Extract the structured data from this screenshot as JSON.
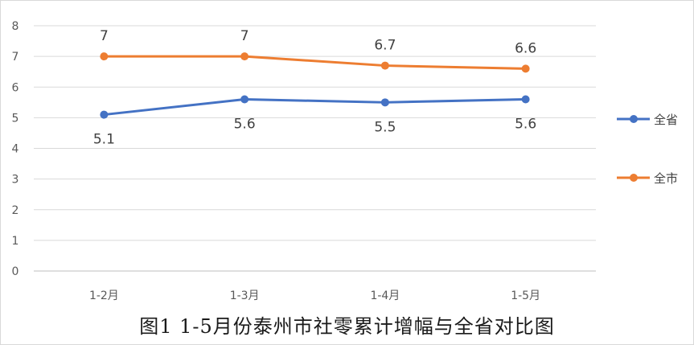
{
  "chart_data": {
    "type": "line",
    "categories": [
      "1-2月",
      "1-3月",
      "1-4月",
      "1-5月"
    ],
    "ylim": [
      0,
      8
    ],
    "yticks": [
      0,
      1,
      2,
      3,
      4,
      5,
      6,
      7,
      8
    ],
    "grid": true,
    "legend_position": "right",
    "series": [
      {
        "name": "全省",
        "color": "#4472C4",
        "values": [
          5.1,
          5.6,
          5.5,
          5.6
        ],
        "labels": [
          "5.1",
          "5.6",
          "5.5",
          "5.6"
        ],
        "label_position": "below"
      },
      {
        "name": "全市",
        "color": "#ED7D31",
        "values": [
          7,
          7,
          6.7,
          6.6
        ],
        "labels": [
          "7",
          "7",
          "6.7",
          "6.6"
        ],
        "label_position": "above"
      }
    ],
    "title": "图1  1-5月份泰州市社零累计增幅与全省对比图"
  }
}
